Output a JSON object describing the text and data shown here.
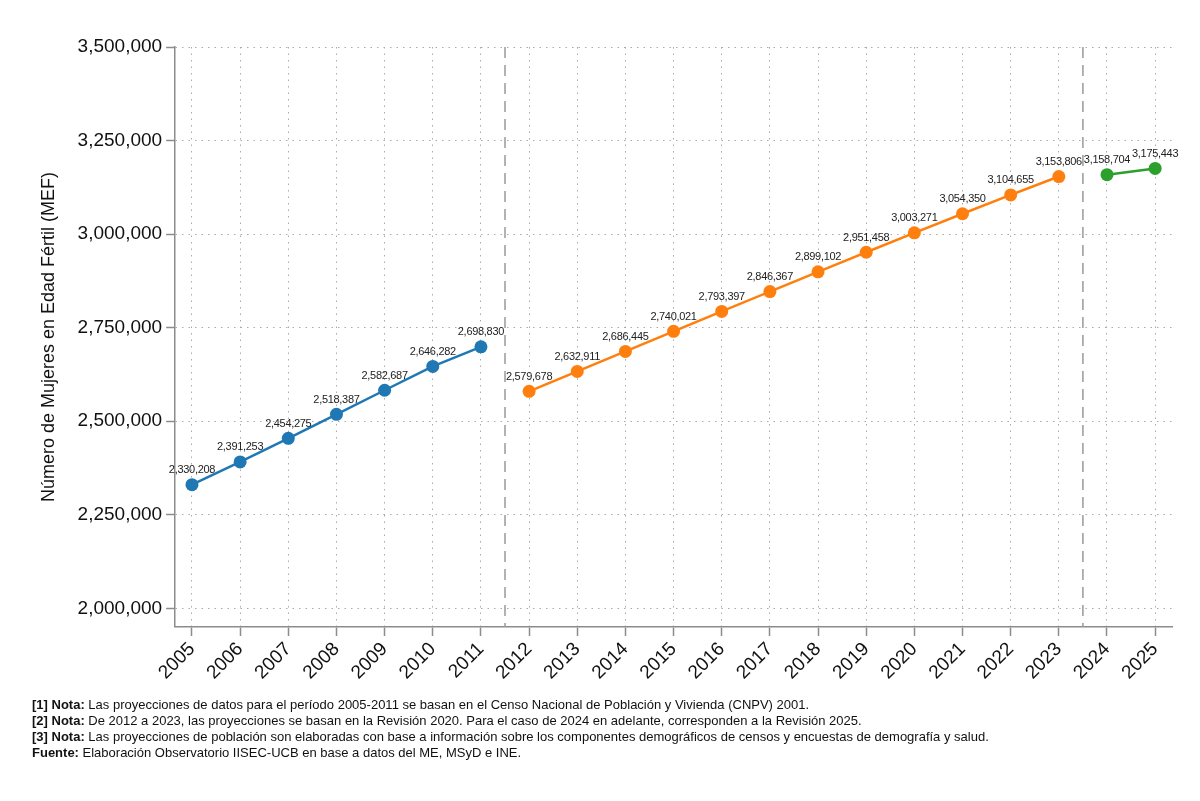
{
  "chart_data": {
    "type": "line",
    "ylabel": "Número de Mujeres en Edad Fértil (MEF)",
    "series": [
      {
        "color": "#1f77b4",
        "x": [
          2005,
          2006,
          2007,
          2008,
          2009,
          2010,
          2011
        ],
        "values": [
          2330208,
          2391253,
          2454275,
          2518387,
          2582687,
          2646282,
          2698830
        ],
        "value_labels": [
          "2,330,208",
          "2,391,253",
          "2,454,275",
          "2,518,387",
          "2,582,687",
          "2,646,282",
          "2,698,830"
        ]
      },
      {
        "color": "#ff7f0e",
        "x": [
          2012,
          2013,
          2014,
          2015,
          2016,
          2017,
          2018,
          2019,
          2020,
          2021,
          2022,
          2023
        ],
        "values": [
          2579678,
          2632911,
          2686445,
          2740021,
          2793397,
          2846367,
          2899102,
          2951458,
          3003271,
          3054350,
          3104655,
          3153806
        ],
        "value_labels": [
          "2,579,678",
          "2,632,911",
          "2,686,445",
          "2,740,021",
          "2,793,397",
          "2,846,367",
          "2,899,102",
          "2,951,458",
          "3,003,271",
          "3,054,350",
          "3,104,655",
          "3,153,806"
        ]
      },
      {
        "color": "#2ca02c",
        "x": [
          2024,
          2025
        ],
        "values": [
          3158704,
          3175443
        ],
        "value_labels": [
          "3,158,704",
          "3,175,443"
        ]
      }
    ],
    "xlim": [
      2004.65,
      2025.35
    ],
    "xticks": [
      2005,
      2006,
      2007,
      2008,
      2009,
      2010,
      2011,
      2012,
      2013,
      2014,
      2015,
      2016,
      2017,
      2018,
      2019,
      2020,
      2021,
      2022,
      2023,
      2024,
      2025
    ],
    "ylim": [
      1950000,
      3500000
    ],
    "yticks": [
      {
        "value": 2000000,
        "label": "2,000,000"
      },
      {
        "value": 2250000,
        "label": "2,250,000"
      },
      {
        "value": 2500000,
        "label": "2,500,000"
      },
      {
        "value": 2750000,
        "label": "2,750,000"
      },
      {
        "value": 3000000,
        "label": "3,000,000"
      },
      {
        "value": 3250000,
        "label": "3,250,000"
      },
      {
        "value": 3500000,
        "label": "3,500,000"
      }
    ],
    "ref_lines": [
      {
        "axis": "x",
        "value": 2011.5,
        "color": "#999999",
        "line_style": "dashed"
      },
      {
        "axis": "x",
        "value": 2023.5,
        "color": "#999999",
        "line_style": "dashed"
      }
    ],
    "grid": true,
    "legend": false,
    "marker": "circle",
    "line_style": "solid",
    "annotations": [
      "[1] Nota: Las proyecciones de datos para el período 2005-2011 se basan en el Censo Nacional de Población y Vivienda (CNPV) 2001.",
      "[2] Nota: De 2012 a 2023, las proyecciones se basan en la Revisión 2020. Para el caso de 2024 en adelante, corresponden a la Revisión 2025.",
      "[3] Nota: Las proyecciones de población son elaboradas con base a información sobre los componentes demográficos de censos y encuestas de demografía y salud.",
      "Fuente: Elaboración Observatorio IISEC-UCB en base a datos del ME, MSyD e INE."
    ]
  }
}
